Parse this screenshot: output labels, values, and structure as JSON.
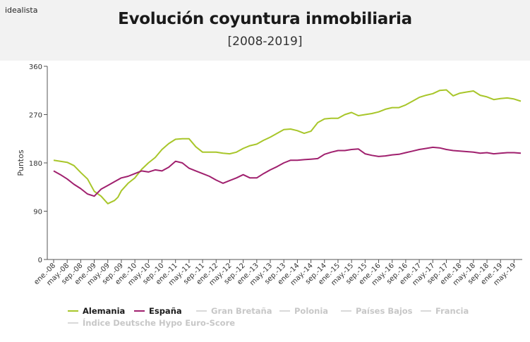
{
  "brand": "idealista",
  "chart_data": {
    "type": "line",
    "title": "Evolución coyuntura inmobiliaria",
    "subtitle": "[2008-2019]",
    "ylabel": "Puntos",
    "xlabel": "",
    "ylim": [
      0,
      360
    ],
    "yticks": [
      0,
      90,
      180,
      270,
      360
    ],
    "grid": false,
    "legend_position": "bottom-left",
    "x_tick_labels": [
      "ene.-08",
      "may.-08",
      "sep.-08",
      "ene.-09",
      "may.-09",
      "sep.-09",
      "ene.-10",
      "may.-10",
      "sep.-10",
      "ene.-11",
      "may.-11",
      "sep.-11",
      "ene.-12",
      "may.-12",
      "sep.-12",
      "ene.-13",
      "may.-13",
      "sep.-13",
      "ene.-14",
      "may.-14",
      "sep.-14",
      "ene.-15",
      "may.-15",
      "sep.-15",
      "ene.-16",
      "may.-16",
      "sep.-16",
      "ene.-17",
      "may.-17",
      "sep.-17",
      "ene.-18",
      "may.-18",
      "sep.-18",
      "ene.-19",
      "may.-19"
    ],
    "x_range_months": 138,
    "series": [
      {
        "name": "Alemania",
        "color": "#a8c62a",
        "visible": true,
        "x": [
          0,
          2,
          4,
          6,
          8,
          10,
          12,
          14,
          16,
          18,
          19,
          20,
          22,
          24,
          26,
          28,
          30,
          32,
          34,
          36,
          38,
          40,
          42,
          44,
          46,
          48,
          50,
          52,
          54,
          56,
          58,
          60,
          62,
          64,
          66,
          68,
          70,
          72,
          74,
          76,
          78,
          80,
          82,
          84,
          86,
          88,
          90,
          92,
          94,
          96,
          98,
          100,
          102,
          104,
          106,
          108,
          110,
          112,
          114,
          116,
          118,
          120,
          122,
          124,
          126,
          128,
          130,
          132,
          134,
          136,
          138
        ],
        "values": [
          185,
          183,
          181,
          175,
          162,
          150,
          127,
          118,
          104,
          110,
          116,
          128,
          142,
          152,
          168,
          180,
          190,
          205,
          216,
          224,
          225,
          225,
          210,
          200,
          200,
          200,
          198,
          197,
          200,
          207,
          212,
          215,
          222,
          228,
          235,
          242,
          243,
          240,
          235,
          239,
          255,
          262,
          263,
          263,
          270,
          274,
          268,
          270,
          272,
          275,
          280,
          283,
          283,
          288,
          295,
          302,
          306,
          309,
          315,
          316,
          305,
          310,
          312,
          314,
          306,
          303,
          298,
          300,
          301,
          299,
          295
        ]
      },
      {
        "name": "España",
        "color": "#a0206e",
        "visible": true,
        "x": [
          0,
          2,
          4,
          6,
          8,
          10,
          12,
          14,
          16,
          18,
          20,
          22,
          24,
          26,
          28,
          30,
          32,
          34,
          36,
          38,
          40,
          42,
          44,
          46,
          48,
          50,
          52,
          54,
          56,
          58,
          60,
          62,
          64,
          66,
          68,
          70,
          72,
          74,
          76,
          78,
          80,
          82,
          84,
          86,
          88,
          90,
          92,
          94,
          96,
          98,
          100,
          102,
          104,
          106,
          108,
          110,
          112,
          114,
          116,
          118,
          120,
          122,
          124,
          126,
          128,
          130,
          132,
          134,
          136,
          138
        ],
        "values": [
          165,
          158,
          150,
          140,
          132,
          122,
          118,
          131,
          138,
          145,
          152,
          155,
          160,
          165,
          163,
          167,
          165,
          172,
          183,
          180,
          170,
          165,
          160,
          155,
          148,
          142,
          147,
          152,
          158,
          152,
          152,
          160,
          167,
          173,
          180,
          185,
          185,
          186,
          187,
          188,
          196,
          200,
          203,
          203,
          205,
          206,
          197,
          194,
          192,
          193,
          195,
          196,
          199,
          202,
          205,
          207,
          209,
          208,
          205,
          203,
          202,
          201,
          200,
          198,
          199,
          197,
          198,
          199,
          199,
          198
        ]
      }
    ],
    "legend": [
      {
        "label": "Alemania",
        "color": "#a8c62a",
        "active": true
      },
      {
        "label": "España",
        "color": "#a0206e",
        "active": true
      },
      {
        "label": "Gran Bretaña",
        "color": "#d9d9d9",
        "active": false
      },
      {
        "label": "Polonia",
        "color": "#d9d9d9",
        "active": false
      },
      {
        "label": "Países Bajos",
        "color": "#d9d9d9",
        "active": false
      },
      {
        "label": "Francia",
        "color": "#d9d9d9",
        "active": false
      },
      {
        "label": "Índice Deutsche Hypo Euro-Score",
        "color": "#d9d9d9",
        "active": false
      }
    ]
  }
}
